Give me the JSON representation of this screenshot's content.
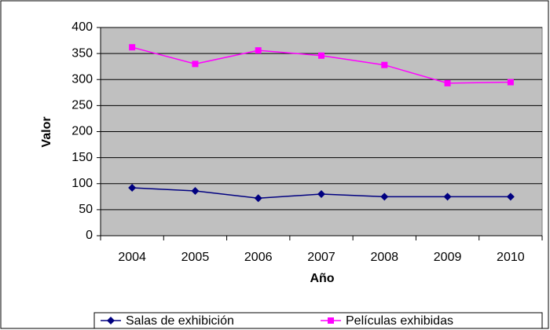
{
  "chart_data": {
    "type": "line",
    "x_label": "Año",
    "y_label": "Valor",
    "categories": [
      "2004",
      "2005",
      "2006",
      "2007",
      "2008",
      "2009",
      "2010"
    ],
    "series": [
      {
        "name": "Salas de exhibición",
        "color": "#000080",
        "marker": "diamond",
        "values": [
          92,
          86,
          72,
          80,
          75,
          75,
          75
        ]
      },
      {
        "name": "Películas exhibidas",
        "color": "#ff00ff",
        "marker": "square",
        "values": [
          362,
          330,
          356,
          346,
          328,
          293,
          295
        ]
      }
    ],
    "ylim": [
      0,
      400
    ],
    "yticks": [
      0,
      50,
      100,
      150,
      200,
      250,
      300,
      350,
      400
    ],
    "grid": true,
    "legend": "bottom"
  }
}
